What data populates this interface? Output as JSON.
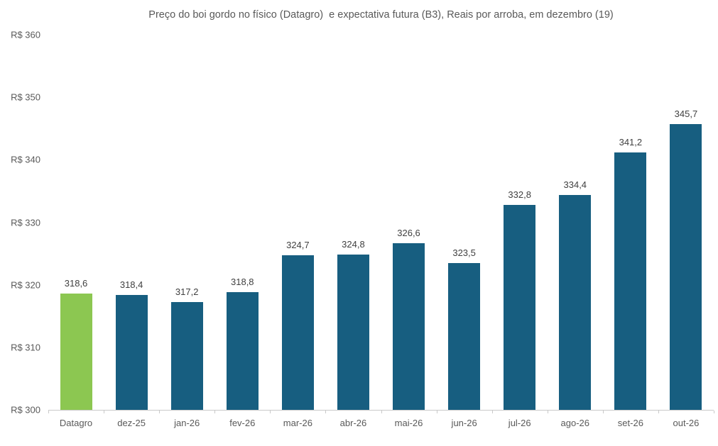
{
  "title": "Preço do boi gordo no físico (Datagro)  e expectativa futura (B3), Reais por arroba, em dezembro (19)",
  "colors": {
    "bar_default": "#175E80",
    "bar_highlight": "#8CC751",
    "axis_line": "#C9C9C9",
    "title_text": "#595959",
    "tick_text": "#595959",
    "value_label_text": "#404040"
  },
  "chart_data": {
    "type": "bar",
    "title": "Preço do boi gordo no físico (Datagro)  e expectativa futura (B3), Reais por arroba, em dezembro (19)",
    "categories": [
      "Datagro",
      "dez-25",
      "jan-26",
      "fev-26",
      "mar-26",
      "abr-26",
      "mai-26",
      "jun-26",
      "jul-26",
      "ago-26",
      "set-26",
      "out-26"
    ],
    "values": [
      318.6,
      318.4,
      317.2,
      318.8,
      324.7,
      324.8,
      326.6,
      323.5,
      332.8,
      334.4,
      341.2,
      345.7
    ],
    "value_labels": [
      "318,6",
      "318,4",
      "317,2",
      "318,8",
      "324,7",
      "324,8",
      "326,6",
      "323,5",
      "332,8",
      "334,4",
      "341,2",
      "345,7"
    ],
    "highlight_index": 0,
    "xlabel": "",
    "ylabel": "",
    "ylim": [
      300,
      360
    ],
    "grid": false,
    "legend": false,
    "y_ticks": [
      {
        "value": 300,
        "label": "R$ 300"
      },
      {
        "value": 310,
        "label": "R$ 310"
      },
      {
        "value": 320,
        "label": "R$ 320"
      },
      {
        "value": 330,
        "label": "R$ 330"
      },
      {
        "value": 340,
        "label": "R$ 340"
      },
      {
        "value": 350,
        "label": "R$ 350"
      },
      {
        "value": 360,
        "label": "R$ 360"
      }
    ]
  }
}
